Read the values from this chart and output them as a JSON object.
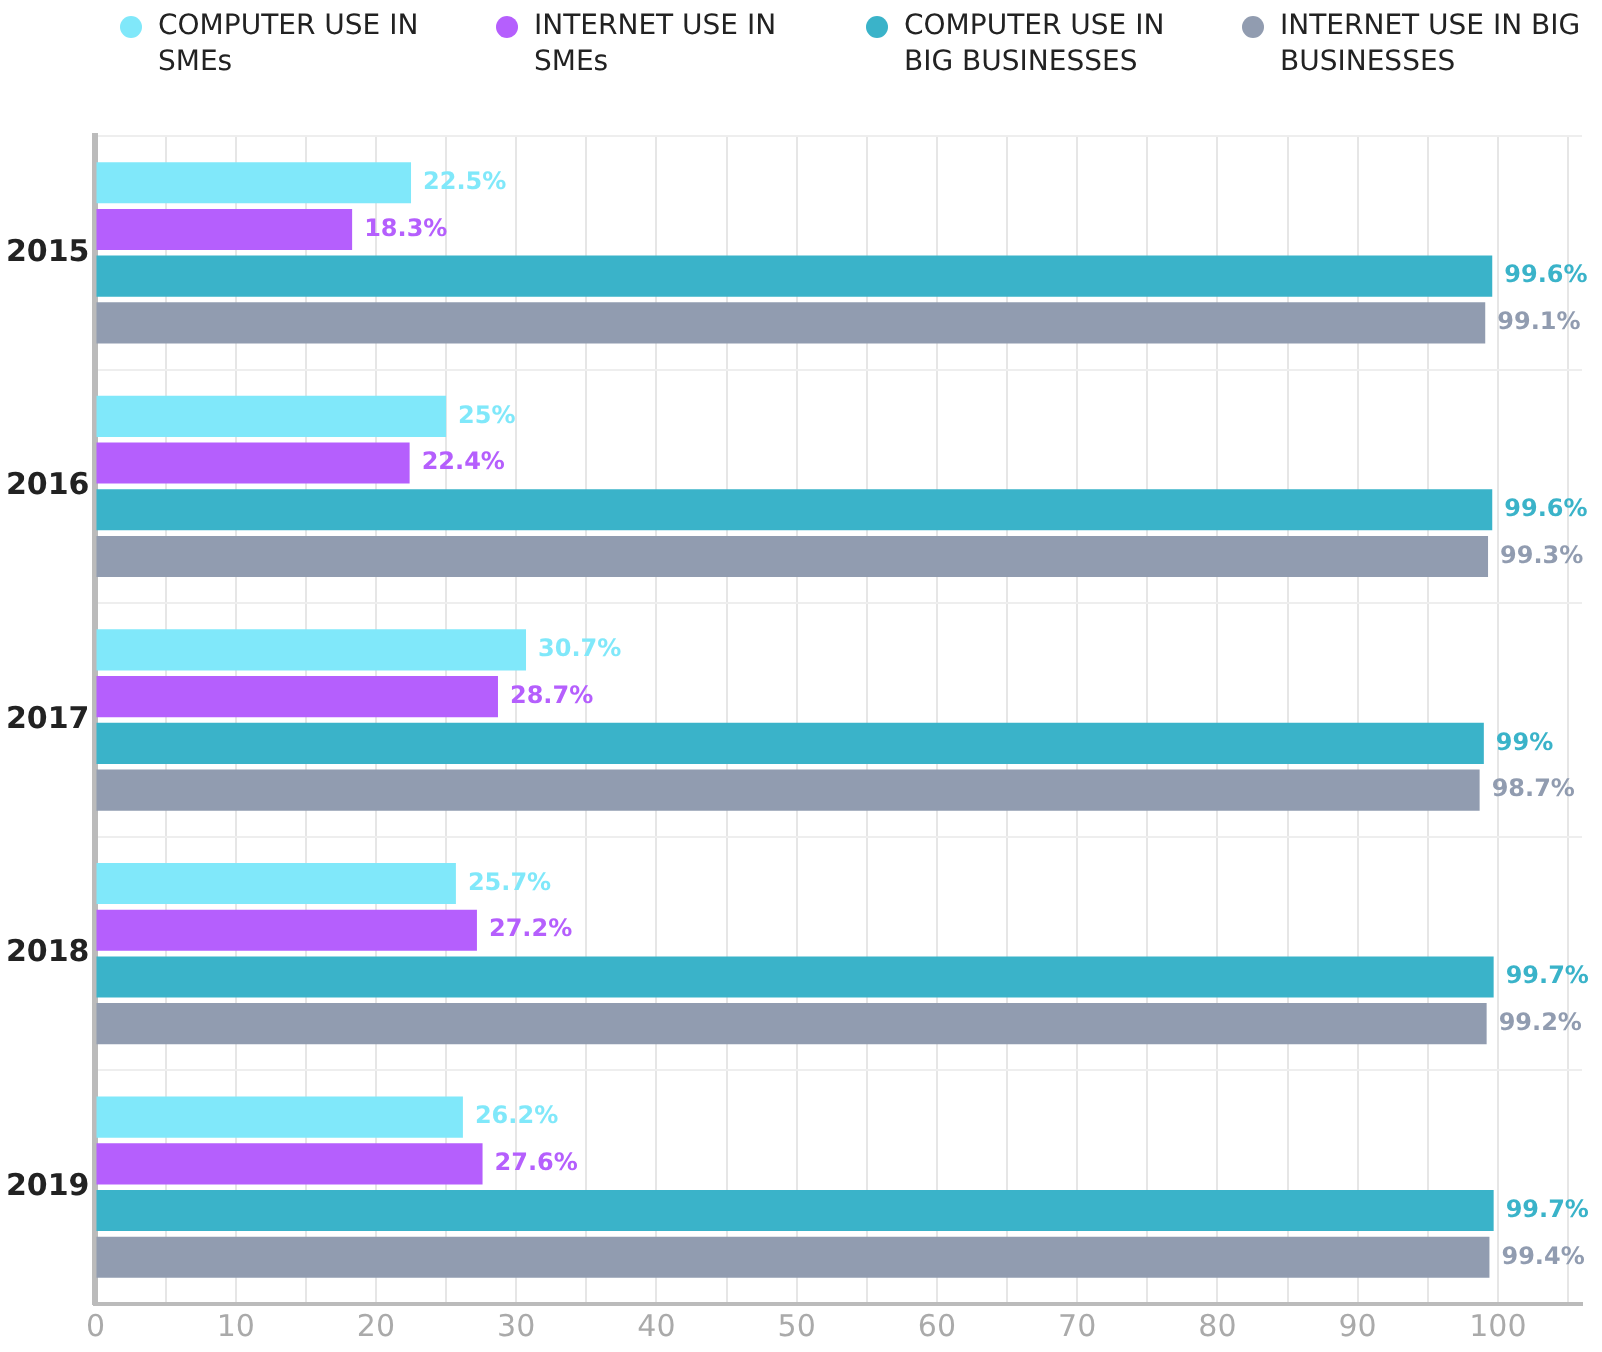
{
  "chart_data": {
    "type": "bar",
    "orientation": "horizontal",
    "categories": [
      "2015",
      "2016",
      "2017",
      "2018",
      "2019"
    ],
    "series": [
      {
        "name": "COMPUTER USE IN SMEs",
        "color": "#80e8fa",
        "values": [
          22.5,
          25,
          30.7,
          25.7,
          26.2
        ],
        "value_labels": [
          "22.5%",
          "25%",
          "30.7%",
          "25.7%",
          "26.2%"
        ]
      },
      {
        "name": "INTERNET USE IN SMEs",
        "color": "#b55ffd",
        "values": [
          18.3,
          22.4,
          28.7,
          27.2,
          27.6
        ],
        "value_labels": [
          "18.3%",
          "22.4%",
          "28.7%",
          "27.2%",
          "27.6%"
        ]
      },
      {
        "name": "COMPUTER USE IN BIG BUSINESSES",
        "color": "#3ab3c9",
        "values": [
          99.6,
          99.6,
          99,
          99.7,
          99.7
        ],
        "value_labels": [
          "99.6%",
          "99.6%",
          "99%",
          "99.7%",
          "99.7%"
        ]
      },
      {
        "name": "INTERNET USE IN BIG BUSINESSES",
        "color": "#919cb0",
        "values": [
          99.1,
          99.3,
          98.7,
          99.2,
          99.4
        ],
        "value_labels": [
          "99.1%",
          "99.3%",
          "98.7%",
          "99.2%",
          "99.4%"
        ]
      }
    ],
    "xlim": [
      0,
      106
    ],
    "xticks": [
      0,
      {
        "value": 5,
        "label": null
      },
      10,
      {
        "value": 15,
        "label": null
      },
      20,
      {
        "value": 25,
        "label": null
      },
      30,
      {
        "value": 35,
        "label": null
      },
      40,
      {
        "value": 45,
        "label": null
      },
      50,
      {
        "value": 55,
        "label": null
      },
      60,
      {
        "value": 65,
        "label": null
      },
      70,
      {
        "value": 75,
        "label": null
      },
      80,
      {
        "value": 85,
        "label": null
      },
      90,
      {
        "value": 95,
        "label": null
      },
      100,
      {
        "value": 105,
        "label": null
      }
    ],
    "grid": true,
    "legend": "top"
  }
}
